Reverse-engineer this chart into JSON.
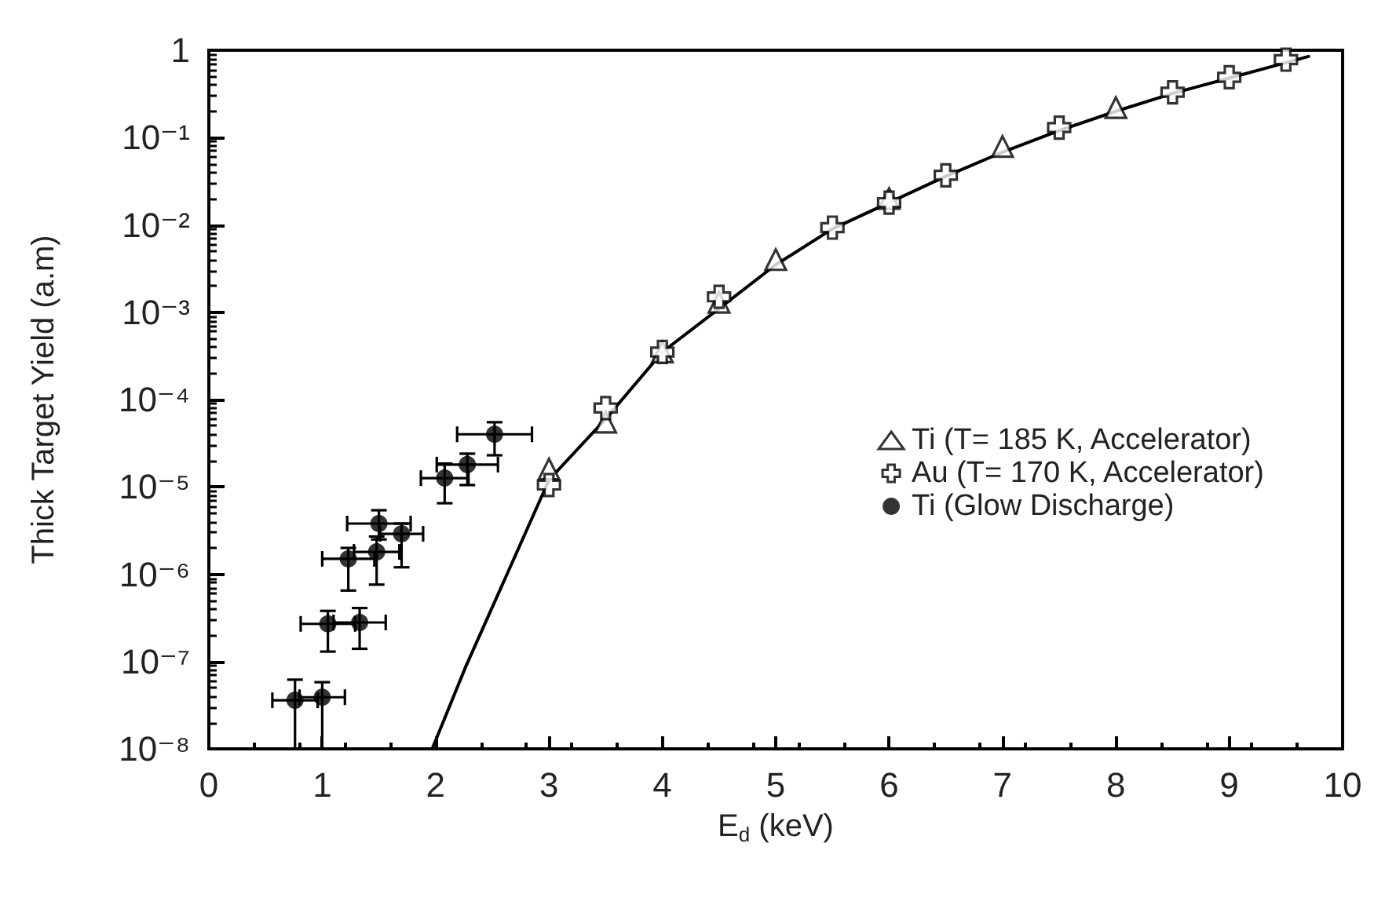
{
  "chart_data": {
    "type": "scatter",
    "xlabel": "E$_{d}$ (keV)",
    "ylabel": "Thick Target Yield (a.m)",
    "log": "y",
    "xlim": [
      0,
      10
    ],
    "xticks": [
      0,
      1,
      2,
      3,
      4,
      5,
      6,
      7,
      8,
      9,
      10
    ],
    "ylim": [
      1e-08,
      1
    ],
    "yticks": [
      {
        "value": 1e-08,
        "label": "10⁻⁸"
      },
      {
        "value": 1e-07,
        "label": "10⁻⁷"
      },
      {
        "value": 1e-06,
        "label": "10⁻⁶"
      },
      {
        "value": 1e-05,
        "label": "10⁻⁵"
      },
      {
        "value": 0.0001,
        "label": "10⁻⁴"
      },
      {
        "value": 0.001,
        "label": "10⁻³"
      },
      {
        "value": 0.01,
        "label": "10⁻²"
      },
      {
        "value": 0.1,
        "label": "10⁻¹"
      },
      {
        "value": 1,
        "label": "1"
      }
    ],
    "grid": false,
    "legend": "right",
    "series": [
      {
        "name": "Ti (T= 185 K, Accelerator)",
        "color": "#000000",
        "marker": "triangle",
        "x": [
          3.0,
          3.5,
          4.0,
          4.5,
          5.0,
          6.0,
          7.0,
          8.0
        ],
        "values": [
          1.6e-05,
          5.5e-05,
          0.00035,
          0.0013,
          0.004,
          0.02,
          0.079,
          0.22
        ]
      },
      {
        "name": "Au (T= 170 K, Accelerator)",
        "color": "#000000",
        "marker": "cross",
        "x": [
          3.0,
          3.5,
          4.0,
          4.5,
          5.5,
          6.0,
          6.5,
          7.5,
          8.5,
          9.0,
          9.5
        ],
        "values": [
          1.05e-05,
          8e-05,
          0.00035,
          0.0015,
          0.0093,
          0.018,
          0.037,
          0.13,
          0.33,
          0.49,
          0.78
        ]
      },
      {
        "name": "Ti (Glow Discharge)",
        "color": "#000000",
        "marker": "circle",
        "x": [
          0.76,
          1.0,
          1.05,
          1.23,
          1.33,
          1.48,
          1.5,
          1.7,
          2.08,
          2.28,
          2.52
        ],
        "values": [
          3.6e-08,
          3.9e-08,
          2.7e-07,
          1.5e-06,
          2.8e-07,
          1.8e-06,
          3.8e-06,
          2.9e-06,
          1.26e-05,
          1.8e-05,
          4e-05
        ],
        "errors": [
          [
            1e-08,
            6.2e-08
          ],
          [
            1e-08,
            5.8e-08
          ],
          [
            1.3e-07,
            3.8e-07
          ],
          [
            6.5e-07,
            2e-06
          ],
          [
            1.4e-07,
            4.1e-07
          ],
          [
            7.6e-07,
            2.7e-06
          ],
          [
            2.5e-06,
            5.4e-06
          ],
          [
            1.2e-06,
            3.8e-06
          ],
          [
            6.5e-06,
            1.85e-05
          ],
          [
            1.05e-05,
            2.4e-05
          ],
          [
            2.3e-05,
            5.5e-05
          ]
        ],
        "xerrors": [
          0.2,
          0.2,
          0.24,
          0.23,
          0.23,
          0.2,
          0.28,
          0.19,
          0.21,
          0.27,
          0.33
        ]
      },
      {
        "type": "line",
        "color": "#000000",
        "marker": "none",
        "x": [
          1.97,
          2.27,
          2.63,
          3.0,
          3.5,
          4.0,
          4.5,
          5.0,
          5.5,
          6.0,
          6.5,
          7.0,
          7.5,
          8.0,
          8.5,
          9.0,
          9.5,
          9.7
        ],
        "values": [
          1e-08,
          9e-08,
          1e-06,
          1.2e-05,
          6e-05,
          0.00035,
          0.0011,
          0.0035,
          0.009,
          0.018,
          0.036,
          0.068,
          0.12,
          0.2,
          0.32,
          0.48,
          0.72,
          0.85
        ]
      }
    ]
  }
}
